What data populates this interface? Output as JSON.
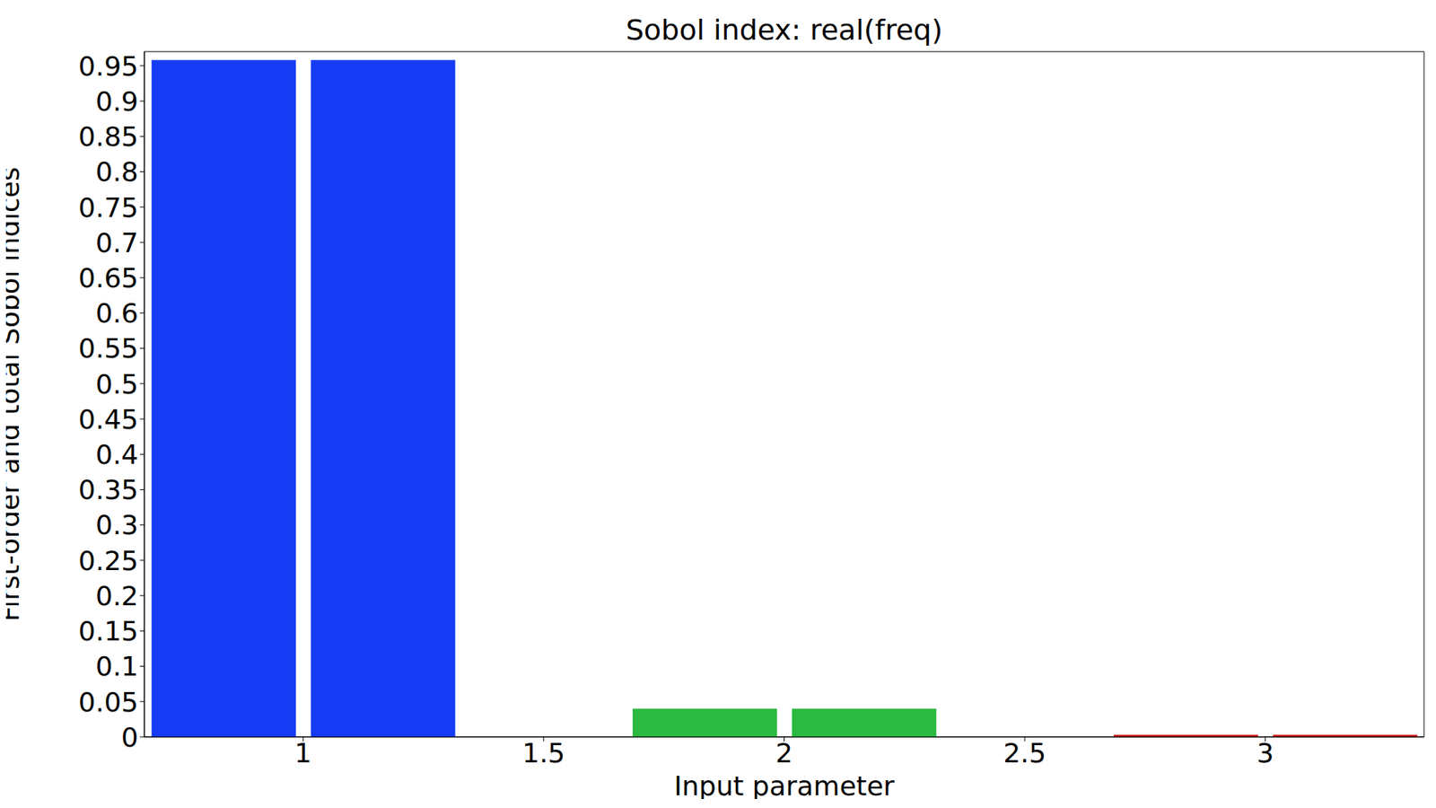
{
  "chart_data": {
    "type": "bar",
    "title": "Sobol index: real(freq)",
    "x_label": "Input parameter",
    "y_label": "First-order and total Sobol indices",
    "x": [
      1,
      2,
      3
    ],
    "series": [
      {
        "values": [
          0.958,
          0.04,
          0.003
        ],
        "colors": [
          "#153bf4",
          "#2bb941",
          "#cc1111"
        ]
      },
      {
        "values": [
          0.958,
          0.04,
          0.003
        ],
        "colors": [
          "#153bf4",
          "#2bb941",
          "#cc1111"
        ]
      }
    ],
    "xlim": [
      0.67,
      3.33
    ],
    "ylim": [
      0,
      0.97
    ],
    "xticks": [
      1,
      1.5,
      2,
      2.5,
      3
    ],
    "yticks": [
      0,
      0.05,
      0.1,
      0.15,
      0.2,
      0.25,
      0.3,
      0.35,
      0.4,
      0.45,
      0.5,
      0.55,
      0.6,
      0.65,
      0.7,
      0.75,
      0.8,
      0.85,
      0.9,
      0.95
    ],
    "grid": false
  }
}
